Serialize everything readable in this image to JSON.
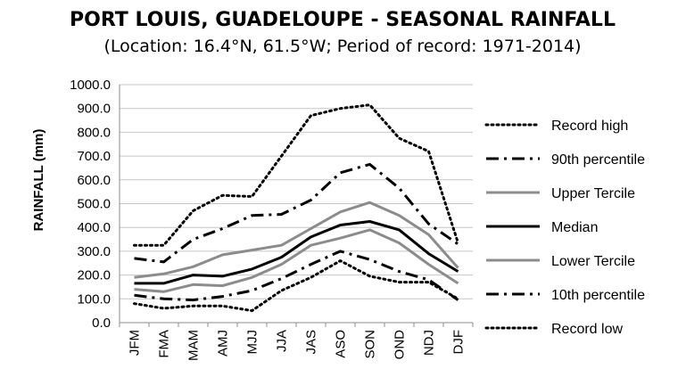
{
  "chart_data": {
    "type": "line",
    "title": "PORT LOUIS, GUADELOUPE - SEASONAL RAINFALL",
    "subtitle": "(Location: 16.4°N, 61.5°W; Period of record: 1971-2014)",
    "xlabel": "",
    "ylabel": "RAINFALL (mm)",
    "ylim": [
      0,
      1000
    ],
    "yticks": [
      "0.0",
      "100.0",
      "200.0",
      "300.0",
      "400.0",
      "500.0",
      "600.0",
      "700.0",
      "800.0",
      "900.0",
      "1000.0"
    ],
    "categories": [
      "JFM",
      "FMA",
      "MAM",
      "AMJ",
      "MJJ",
      "JJA",
      "JAS",
      "ASO",
      "SON",
      "OND",
      "NDJ",
      "DJF"
    ],
    "grid": true,
    "legend_position": "right",
    "series": [
      {
        "name": "Record high",
        "style": "dotted",
        "color": "#000000",
        "values": [
          325,
          325,
          470,
          535,
          530,
          700,
          870,
          900,
          915,
          775,
          720,
          335
        ]
      },
      {
        "name": "90th percentile",
        "style": "dashdot",
        "color": "#000000",
        "values": [
          270,
          255,
          350,
          395,
          450,
          455,
          515,
          630,
          665,
          565,
          415,
          330
        ]
      },
      {
        "name": "Upper Tercile",
        "style": "solid",
        "color": "#8c8c8c",
        "values": [
          190,
          205,
          235,
          285,
          305,
          325,
          395,
          465,
          505,
          450,
          370,
          230
        ]
      },
      {
        "name": "Median",
        "style": "solid",
        "color": "#000000",
        "values": [
          165,
          165,
          200,
          195,
          225,
          275,
          360,
          410,
          425,
          390,
          290,
          215
        ]
      },
      {
        "name": "Lower Tercile",
        "style": "solid",
        "color": "#8c8c8c",
        "values": [
          140,
          130,
          160,
          155,
          190,
          245,
          325,
          355,
          390,
          335,
          245,
          165
        ]
      },
      {
        "name": "10th percentile",
        "style": "dashdot",
        "color": "#000000",
        "values": [
          115,
          100,
          95,
          110,
          135,
          185,
          245,
          300,
          265,
          215,
          180,
          95
        ]
      },
      {
        "name": "Record low",
        "style": "dotted",
        "color": "#000000",
        "values": [
          80,
          60,
          70,
          70,
          50,
          135,
          190,
          260,
          195,
          170,
          170,
          100
        ]
      }
    ]
  }
}
